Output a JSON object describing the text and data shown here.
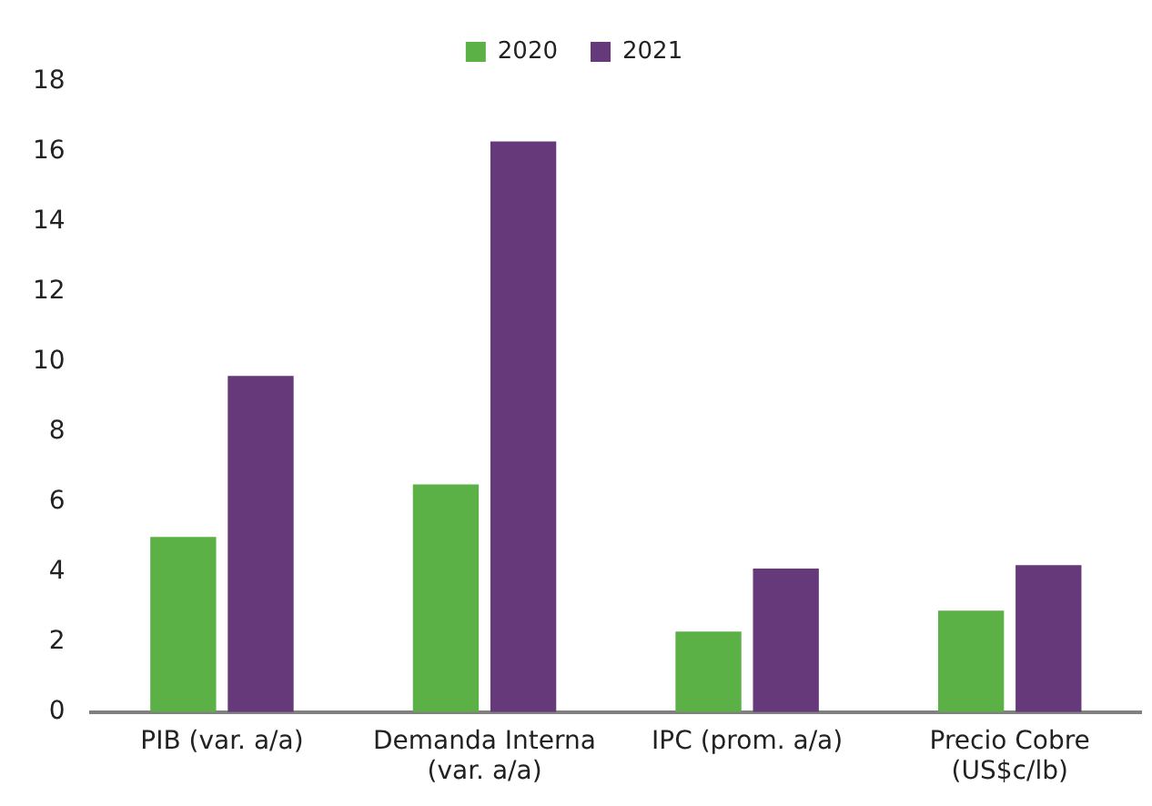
{
  "chart_data": {
    "type": "bar",
    "categories": [
      "PIB (var. a/a)",
      "Demanda Interna (var. a/a)",
      "IPC (prom. a/a)",
      "Precio Cobre (US$c/lb)"
    ],
    "series": [
      {
        "name": "2020",
        "color": "#5bb046",
        "values": [
          5.0,
          6.5,
          2.3,
          2.9
        ]
      },
      {
        "name": "2021",
        "color": "#65397a",
        "values": [
          9.6,
          16.3,
          4.1,
          4.2
        ]
      }
    ],
    "ylim": [
      0,
      18
    ],
    "yticks": [
      0,
      2,
      4,
      6,
      8,
      10,
      12,
      14,
      16,
      18
    ],
    "grid": false,
    "legend": "top"
  }
}
